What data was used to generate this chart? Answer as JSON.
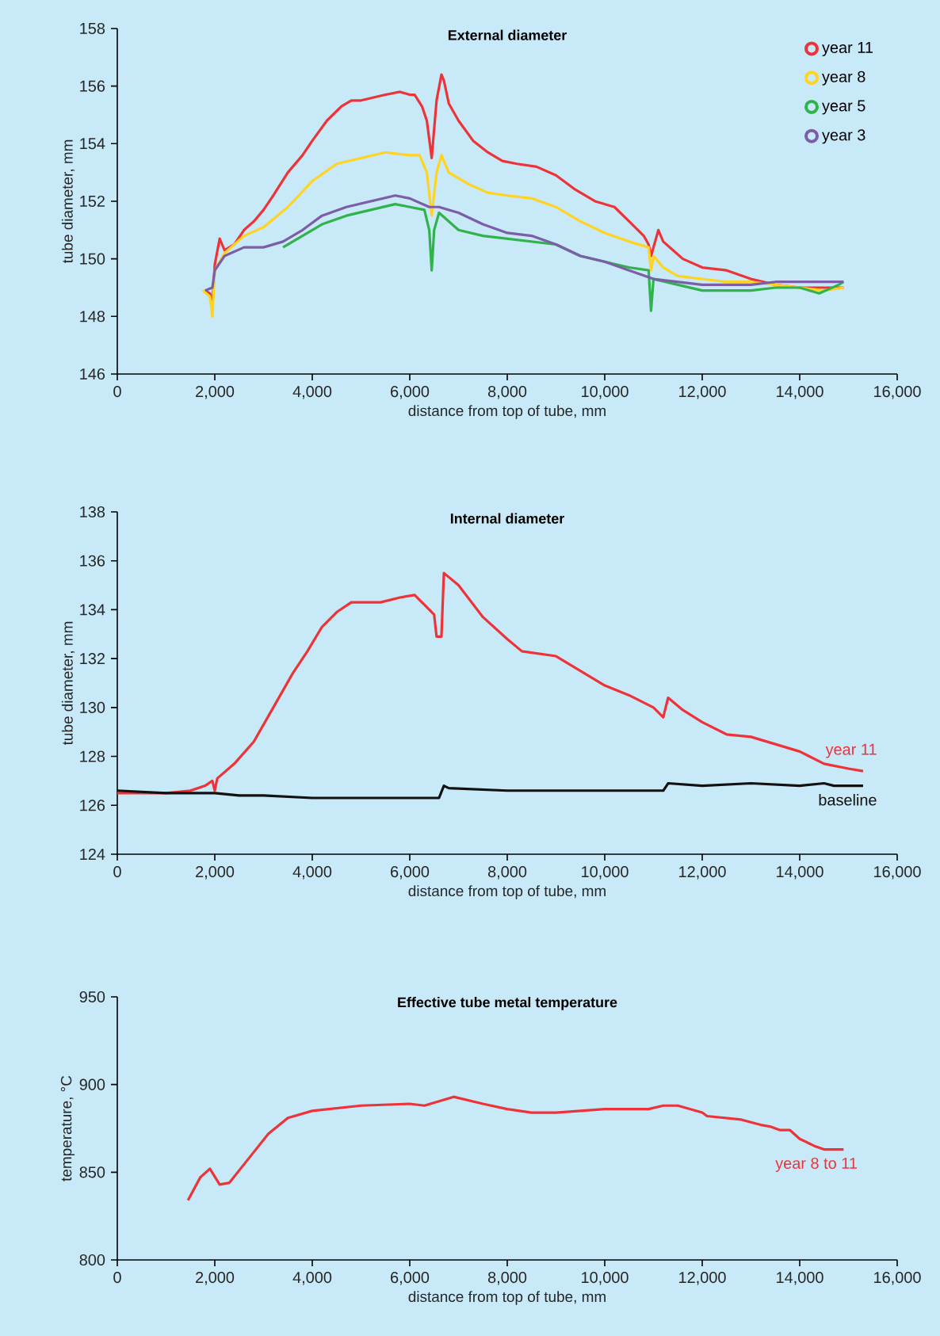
{
  "chart_data": [
    {
      "type": "line",
      "title": "External diameter",
      "xlabel": "distance from top of tube, mm",
      "ylabel": "tube diameter, mm",
      "xlim": [
        0,
        16000
      ],
      "ylim": [
        146,
        158
      ],
      "xticks": [
        0,
        {
          "value": 2000,
          "label": "2,000"
        },
        {
          "value": 4000,
          "label": "4,000"
        },
        {
          "value": 6000,
          "label": "6,000"
        },
        {
          "value": 8000,
          "label": "8,000"
        },
        {
          "value": 10000,
          "label": "10,000"
        },
        {
          "value": 12000,
          "label": "12,000"
        },
        {
          "value": 14000,
          "label": "14,000"
        },
        {
          "value": 16000,
          "label": "16,000"
        }
      ],
      "yticks": [
        146,
        148,
        150,
        152,
        154,
        156,
        158
      ],
      "legend": "top right",
      "series": [
        {
          "name": "year 11",
          "color": "#ee3338",
          "x": [
            1800,
            1900,
            1950,
            2000,
            2100,
            2200,
            2400,
            2600,
            2800,
            3000,
            3200,
            3500,
            3800,
            4000,
            4300,
            4600,
            4800,
            5000,
            5500,
            5800,
            6000,
            6100,
            6250,
            6350,
            6450,
            6550,
            6650,
            6700,
            6800,
            7000,
            7300,
            7600,
            7900,
            8200,
            8600,
            9000,
            9400,
            9800,
            10200,
            10500,
            10800,
            10900,
            10950,
            11000,
            11100,
            11200,
            11400,
            11600,
            12000,
            12500,
            13000,
            13500,
            14000,
            14500,
            14900
          ],
          "values": [
            148.9,
            148.8,
            148.4,
            149.8,
            150.7,
            150.3,
            150.5,
            151.0,
            151.3,
            151.7,
            152.2,
            153.0,
            153.6,
            154.1,
            154.8,
            155.3,
            155.5,
            155.5,
            155.7,
            155.8,
            155.7,
            155.7,
            155.3,
            154.8,
            153.5,
            155.5,
            156.4,
            156.2,
            155.4,
            154.8,
            154.1,
            153.7,
            153.4,
            153.3,
            153.2,
            152.9,
            152.4,
            152.0,
            151.8,
            151.3,
            150.8,
            150.5,
            150.1,
            150.4,
            151.0,
            150.6,
            150.3,
            150.0,
            149.7,
            149.6,
            149.3,
            149.1,
            149.0,
            149.0,
            149.0
          ]
        },
        {
          "name": "year 8",
          "color": "#ffd320",
          "x": [
            1750,
            1900,
            1950,
            2000,
            2200,
            2600,
            3000,
            3500,
            4000,
            4500,
            5000,
            5500,
            6000,
            6200,
            6350,
            6450,
            6550,
            6650,
            6800,
            7200,
            7600,
            8000,
            8500,
            9000,
            9500,
            10000,
            10500,
            10900,
            10950,
            11000,
            11200,
            11500,
            12000,
            12500,
            13000,
            13500,
            14000,
            14500,
            14900
          ],
          "values": [
            148.9,
            148.7,
            148.0,
            149.6,
            150.2,
            150.8,
            151.1,
            151.8,
            152.7,
            153.3,
            153.5,
            153.7,
            153.6,
            153.6,
            153.0,
            151.5,
            153.0,
            153.6,
            153.0,
            152.6,
            152.3,
            152.2,
            152.1,
            151.8,
            151.3,
            150.9,
            150.6,
            150.4,
            149.6,
            150.1,
            149.7,
            149.4,
            149.3,
            149.2,
            149.2,
            149.1,
            149.0,
            148.9,
            149.0
          ]
        },
        {
          "name": "year 5",
          "color": "#2fb34a",
          "x": [
            3400,
            3800,
            4200,
            4700,
            5200,
            5700,
            6000,
            6300,
            6400,
            6450,
            6500,
            6600,
            7000,
            7500,
            8000,
            8500,
            9000,
            9500,
            10000,
            10500,
            10900,
            10950,
            11000,
            11500,
            12000,
            12500,
            13000,
            13500,
            14000,
            14400,
            14800,
            14900
          ],
          "values": [
            150.4,
            150.8,
            151.2,
            151.5,
            151.7,
            151.9,
            151.8,
            151.7,
            151.0,
            149.6,
            151.0,
            151.6,
            151.0,
            150.8,
            150.7,
            150.6,
            150.5,
            150.1,
            149.9,
            149.7,
            149.6,
            148.2,
            149.3,
            149.1,
            148.9,
            148.9,
            148.9,
            149.0,
            149.0,
            148.8,
            149.1,
            149.2
          ]
        },
        {
          "name": "year 3",
          "color": "#7b5ea7",
          "x": [
            1800,
            1950,
            2000,
            2200,
            2600,
            3000,
            3400,
            3800,
            4200,
            4700,
            5200,
            5700,
            6000,
            6400,
            6600,
            7000,
            7500,
            8000,
            8500,
            9000,
            9500,
            10000,
            10500,
            11000,
            11500,
            12000,
            12500,
            13000,
            13500,
            14000,
            14500,
            14900
          ],
          "values": [
            148.9,
            149.0,
            149.6,
            150.1,
            150.4,
            150.4,
            150.6,
            151.0,
            151.5,
            151.8,
            152.0,
            152.2,
            152.1,
            151.8,
            151.8,
            151.6,
            151.2,
            150.9,
            150.8,
            150.5,
            150.1,
            149.9,
            149.6,
            149.3,
            149.2,
            149.1,
            149.1,
            149.1,
            149.2,
            149.2,
            149.2,
            149.2
          ]
        }
      ]
    },
    {
      "type": "line",
      "title": "Internal diameter",
      "xlabel": "distance from top of tube, mm",
      "ylabel": "tube diameter, mm",
      "xlim": [
        0,
        16000
      ],
      "ylim": [
        124,
        138
      ],
      "xticks": [
        0,
        {
          "value": 2000,
          "label": "2,000"
        },
        {
          "value": 4000,
          "label": "4,000"
        },
        {
          "value": 6000,
          "label": "6,000"
        },
        {
          "value": 8000,
          "label": "8,000"
        },
        {
          "value": 10000,
          "label": "10,000"
        },
        {
          "value": 12000,
          "label": "12,000"
        },
        {
          "value": 14000,
          "label": "14,000"
        },
        {
          "value": 16000,
          "label": "16,000"
        }
      ],
      "yticks": [
        124,
        126,
        128,
        130,
        132,
        134,
        136,
        138
      ],
      "series": [
        {
          "name": "year 11",
          "color": "#ee3338",
          "x": [
            0,
            500,
            1000,
            1500,
            1800,
            1950,
            2000,
            2050,
            2400,
            2800,
            3200,
            3600,
            3900,
            4200,
            4500,
            4800,
            5000,
            5400,
            5800,
            6100,
            6300,
            6500,
            6550,
            6650,
            6700,
            7000,
            7500,
            8000,
            8300,
            9000,
            9500,
            10000,
            10500,
            11000,
            11200,
            11300,
            11600,
            12000,
            12500,
            13000,
            13500,
            14000,
            14500,
            15000,
            15300
          ],
          "values": [
            126.5,
            126.5,
            126.5,
            126.6,
            126.8,
            127.0,
            126.6,
            127.1,
            127.7,
            128.6,
            130.0,
            131.4,
            132.3,
            133.3,
            133.9,
            134.3,
            134.3,
            134.3,
            134.5,
            134.6,
            134.2,
            133.8,
            132.9,
            132.9,
            135.5,
            135.0,
            133.7,
            132.8,
            132.3,
            132.1,
            131.5,
            130.9,
            130.5,
            130.0,
            129.6,
            130.4,
            129.9,
            129.4,
            128.9,
            128.8,
            128.5,
            128.2,
            127.7,
            127.5,
            127.4
          ]
        },
        {
          "name": "baseline",
          "color": "#111111",
          "x": [
            0,
            1000,
            2000,
            2500,
            3000,
            4000,
            5000,
            6000,
            6600,
            6700,
            6800,
            8000,
            10000,
            11200,
            11300,
            12000,
            13000,
            14000,
            14500,
            14700,
            15300
          ],
          "values": [
            126.6,
            126.5,
            126.5,
            126.4,
            126.4,
            126.3,
            126.3,
            126.3,
            126.3,
            126.8,
            126.7,
            126.6,
            126.6,
            126.6,
            126.9,
            126.8,
            126.9,
            126.8,
            126.9,
            126.8,
            126.8
          ]
        }
      ]
    },
    {
      "type": "line",
      "title": "Effective tube metal temperature",
      "xlabel": "distance from top of tube, mm",
      "ylabel": "temperature, °C",
      "xlim": [
        0,
        16000
      ],
      "ylim": [
        800,
        950
      ],
      "xticks": [
        0,
        {
          "value": 2000,
          "label": "2,000"
        },
        {
          "value": 4000,
          "label": "4,000"
        },
        {
          "value": 6000,
          "label": "6,000"
        },
        {
          "value": 8000,
          "label": "8,000"
        },
        {
          "value": 10000,
          "label": "10,000"
        },
        {
          "value": 12000,
          "label": "12,000"
        },
        {
          "value": 14000,
          "label": "14,000"
        },
        {
          "value": 16000,
          "label": "16,000"
        }
      ],
      "yticks": [
        800,
        850,
        900,
        950
      ],
      "series": [
        {
          "name": "year 8 to 11",
          "color": "#ee3338",
          "x": [
            1450,
            1700,
            1900,
            2100,
            2300,
            2700,
            3100,
            3500,
            4000,
            5000,
            6000,
            6300,
            6900,
            7500,
            8000,
            8500,
            9000,
            9500,
            10000,
            10900,
            11200,
            11500,
            12000,
            12100,
            12800,
            13200,
            13400,
            13600,
            13800,
            14000,
            14300,
            14500,
            14900
          ],
          "values": [
            834,
            847,
            852,
            843,
            844,
            858,
            872,
            881,
            885,
            888,
            889,
            888,
            893,
            889,
            886,
            884,
            884,
            885,
            886,
            886,
            888,
            888,
            884,
            882,
            880,
            877,
            876,
            874,
            874,
            869,
            865,
            863,
            863
          ]
        }
      ]
    }
  ]
}
